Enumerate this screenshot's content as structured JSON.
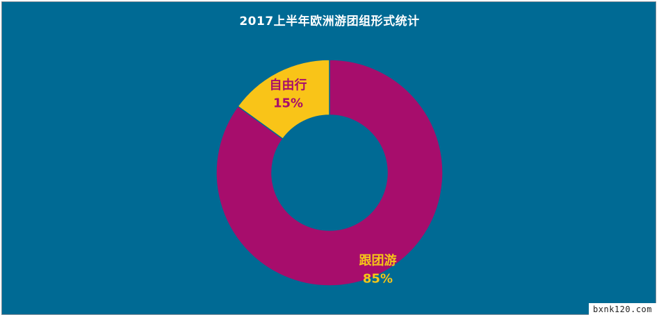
{
  "chart_data": {
    "type": "pie",
    "title": "2017上半年欧洲游团组形式统计",
    "donut": true,
    "slices": [
      {
        "label": "跟团游",
        "value": 85,
        "value_text": "85%",
        "color": "#a70d6c",
        "label_color": "#f5c518"
      },
      {
        "label": "自由行",
        "value": 15,
        "value_text": "15%",
        "color": "#f9c418",
        "label_color": "#a70d6c"
      }
    ],
    "background_color": "#006a94"
  },
  "watermark": "bxnk120.com"
}
